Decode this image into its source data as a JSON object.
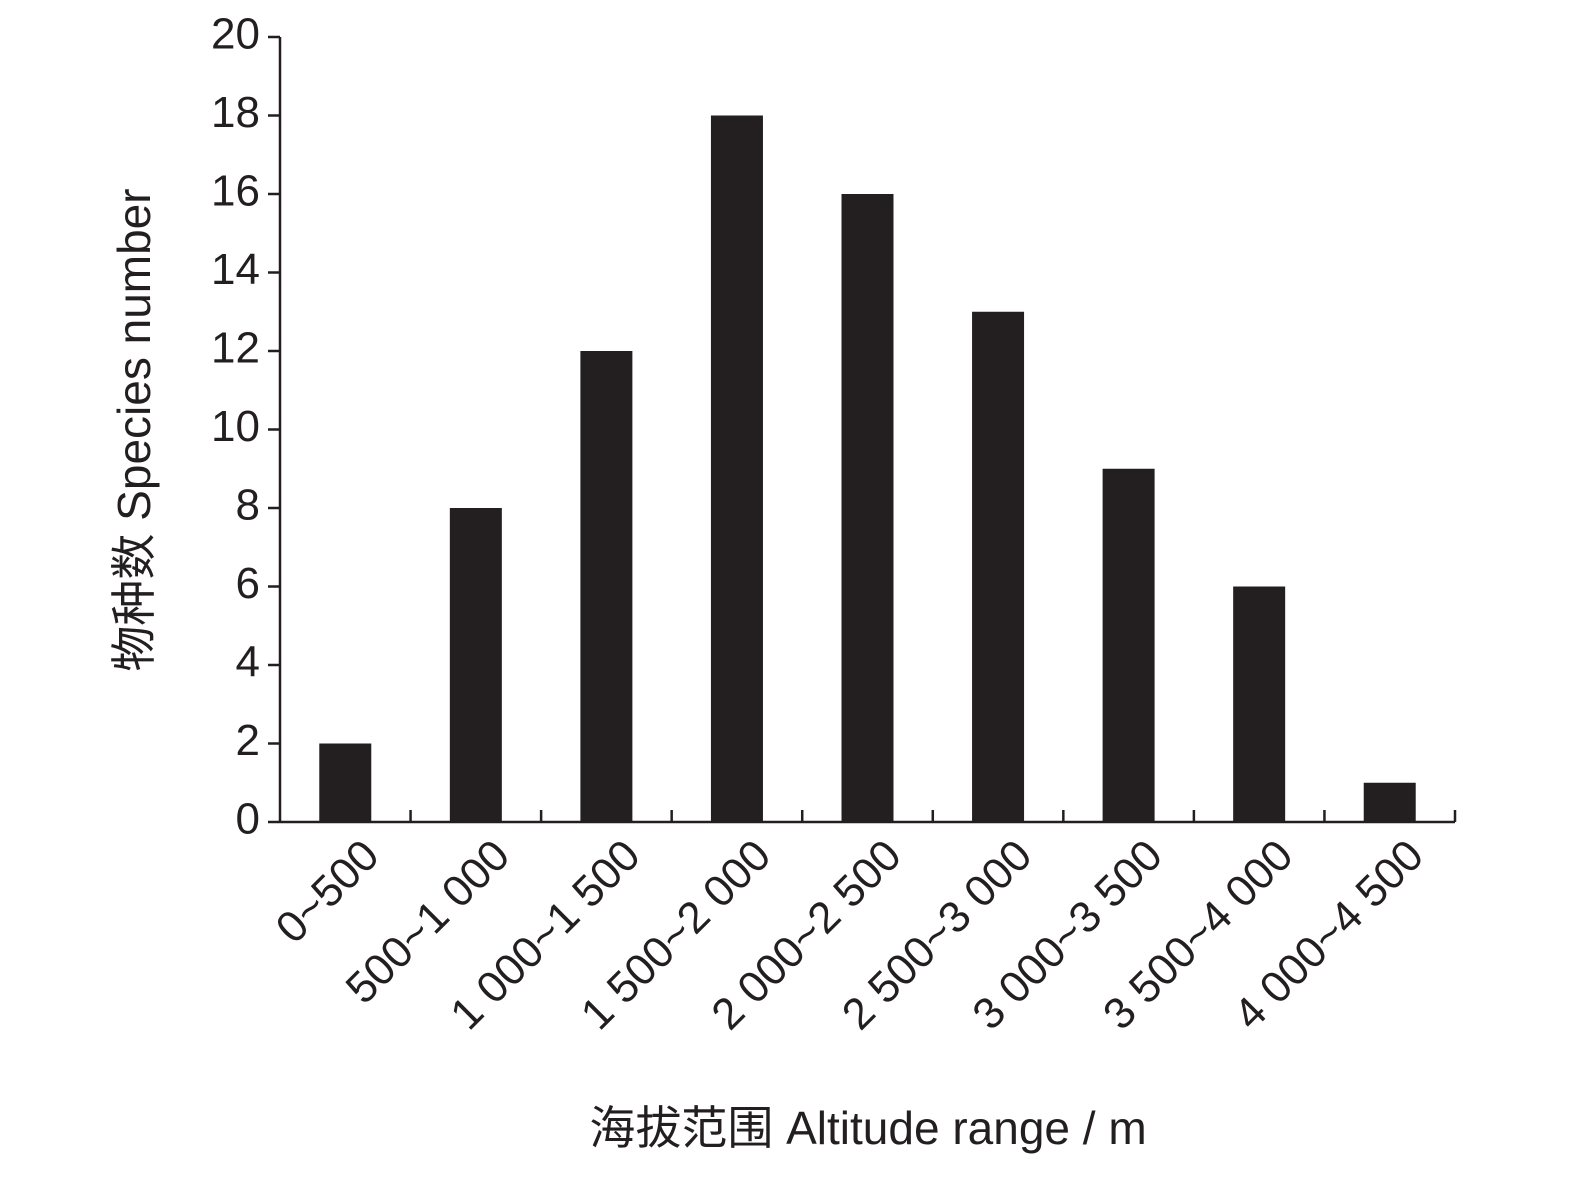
{
  "chart_data": {
    "type": "bar",
    "x_label": "海拔范围 Altitude range / m",
    "y_label": "物种数 Species number",
    "categories": [
      "0~500",
      "500~1 000",
      "1 000~1 500",
      "1 500~2 000",
      "2 000~2 500",
      "2 500~3 000",
      "3 000~3 500",
      "3 500~4 000",
      "4 000~4 500"
    ],
    "values": [
      2,
      8,
      12,
      18,
      16,
      13,
      9,
      6,
      1
    ],
    "color": "#231f20",
    "ylim": [
      0,
      20
    ],
    "yticks": [
      0,
      2,
      4,
      6,
      8,
      10,
      12,
      14,
      16,
      18,
      20
    ],
    "grid": false
  }
}
